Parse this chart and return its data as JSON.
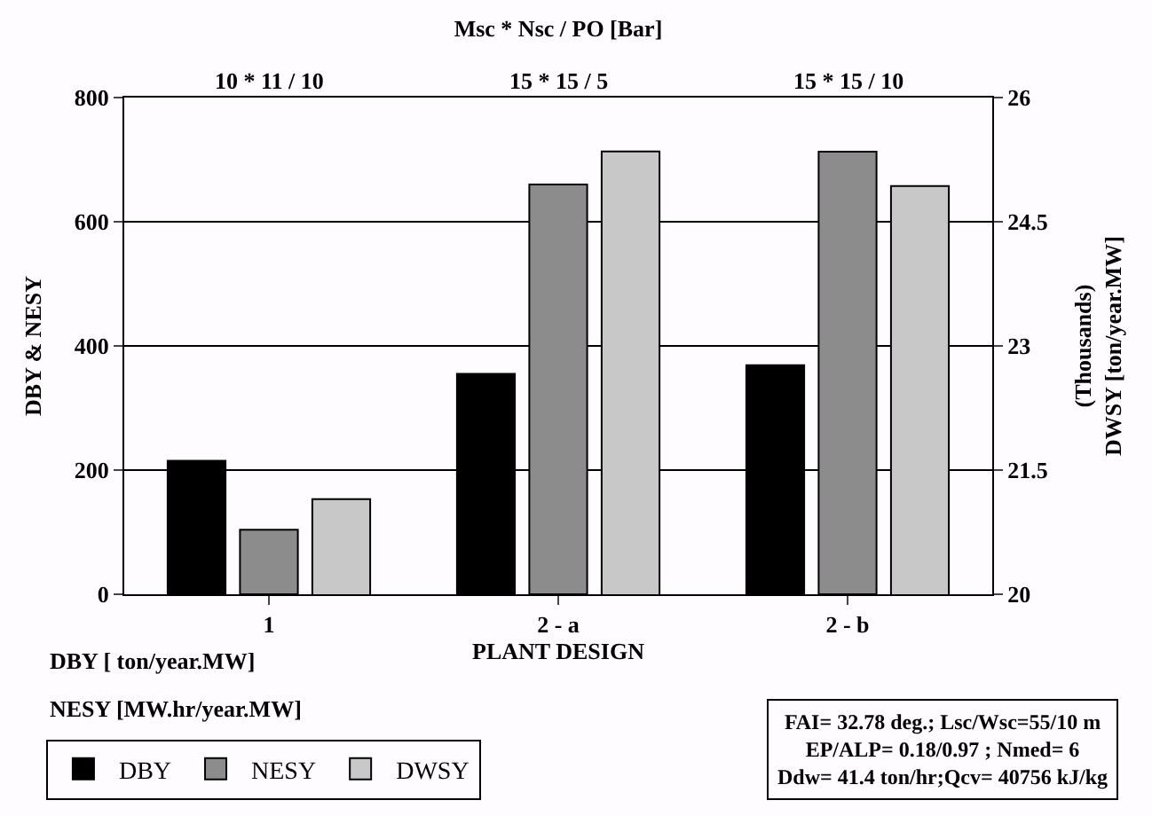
{
  "chart_data": {
    "type": "bar",
    "title": "Msc * Nsc / PO [Bar]",
    "categories": [
      "1",
      "2 - a",
      "2 - b"
    ],
    "xlabel": "PLANT DESIGN",
    "ylabel": "DBY & NESY",
    "y2label": "(Thousands)\nDWSY [ton/year.MW]",
    "series": [
      {
        "name": "DBY",
        "color": "#000000",
        "values": [
          215,
          355,
          369
        ]
      },
      {
        "name": "NESY",
        "color": "#8c8c8c",
        "values": [
          104,
          660,
          713
        ]
      },
      {
        "name": "DWSY",
        "color": "#c8c8c8",
        "axis": "y2",
        "values": [
          21.15,
          25.35,
          24.93
        ]
      }
    ],
    "ylim": [
      0,
      800
    ],
    "yticks": [
      0,
      200,
      400,
      600,
      800
    ],
    "y2lim": [
      20,
      26
    ],
    "y2ticks": [
      20,
      21.5,
      23,
      24.5,
      26
    ],
    "grid": "y",
    "legend": "bottom left",
    "annotations": [
      "10 * 11 / 10",
      "15 * 15 / 5",
      "15 * 15 / 10",
      "DBY [ ton/year.MW]",
      "NESY [MW.hr/year.MW]",
      "FAI= 32.78 deg.; Lsc/Wsc=55/10 m\nEP/ALP= 0.18/0.97 ; Nmed= 6\nDdw= 41.4 ton/hr;Qcv= 40756 kJ/kg"
    ]
  }
}
